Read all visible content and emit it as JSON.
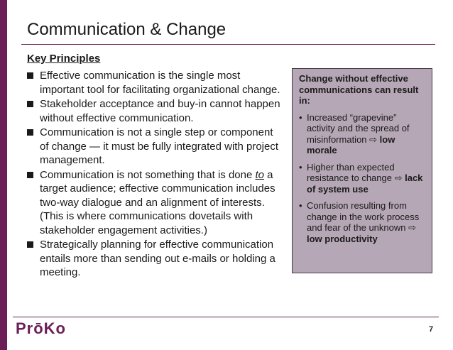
{
  "slide": {
    "title": "Communication & Change",
    "subheading": "Key Principles",
    "bullets": [
      {
        "text": "Effective communication is the single most important tool for facilitating organizational change."
      },
      {
        "text": "Stakeholder acceptance and buy-in cannot happen without effective communication."
      },
      {
        "text": "Communication is not a single step or component of change — it must be fully integrated with project management."
      },
      {
        "pre": "Communication is not something that is done ",
        "emphasis": "to",
        "post": " a target audience; effective communication includes two-way dialogue and an alignment of interests. (This is where communications dovetails with stakeholder engagement activities.)"
      },
      {
        "text": "Strategically planning for effective communication entails more than sending out e-mails or holding a meeting."
      }
    ],
    "callout": {
      "heading": "Change without effective communications can result in:",
      "items": [
        {
          "text": "Increased “grapevine” activity and the spread of misinformation ",
          "arrow": "⇨",
          "result": "low morale"
        },
        {
          "text": "Higher than expected resistance to change ",
          "arrow": "⇨",
          "result": "lack of system use"
        },
        {
          "text": "Confusion resulting from change in the work process and fear of the unknown ",
          "arrow": "⇨",
          "result": "low productivity"
        }
      ]
    },
    "footer": {
      "logo": "PrōKo",
      "page_number": "7"
    },
    "colors": {
      "accent": "#6b1f56",
      "callout_bg": "#b5a7b5",
      "text": "#1a1a1a"
    }
  }
}
